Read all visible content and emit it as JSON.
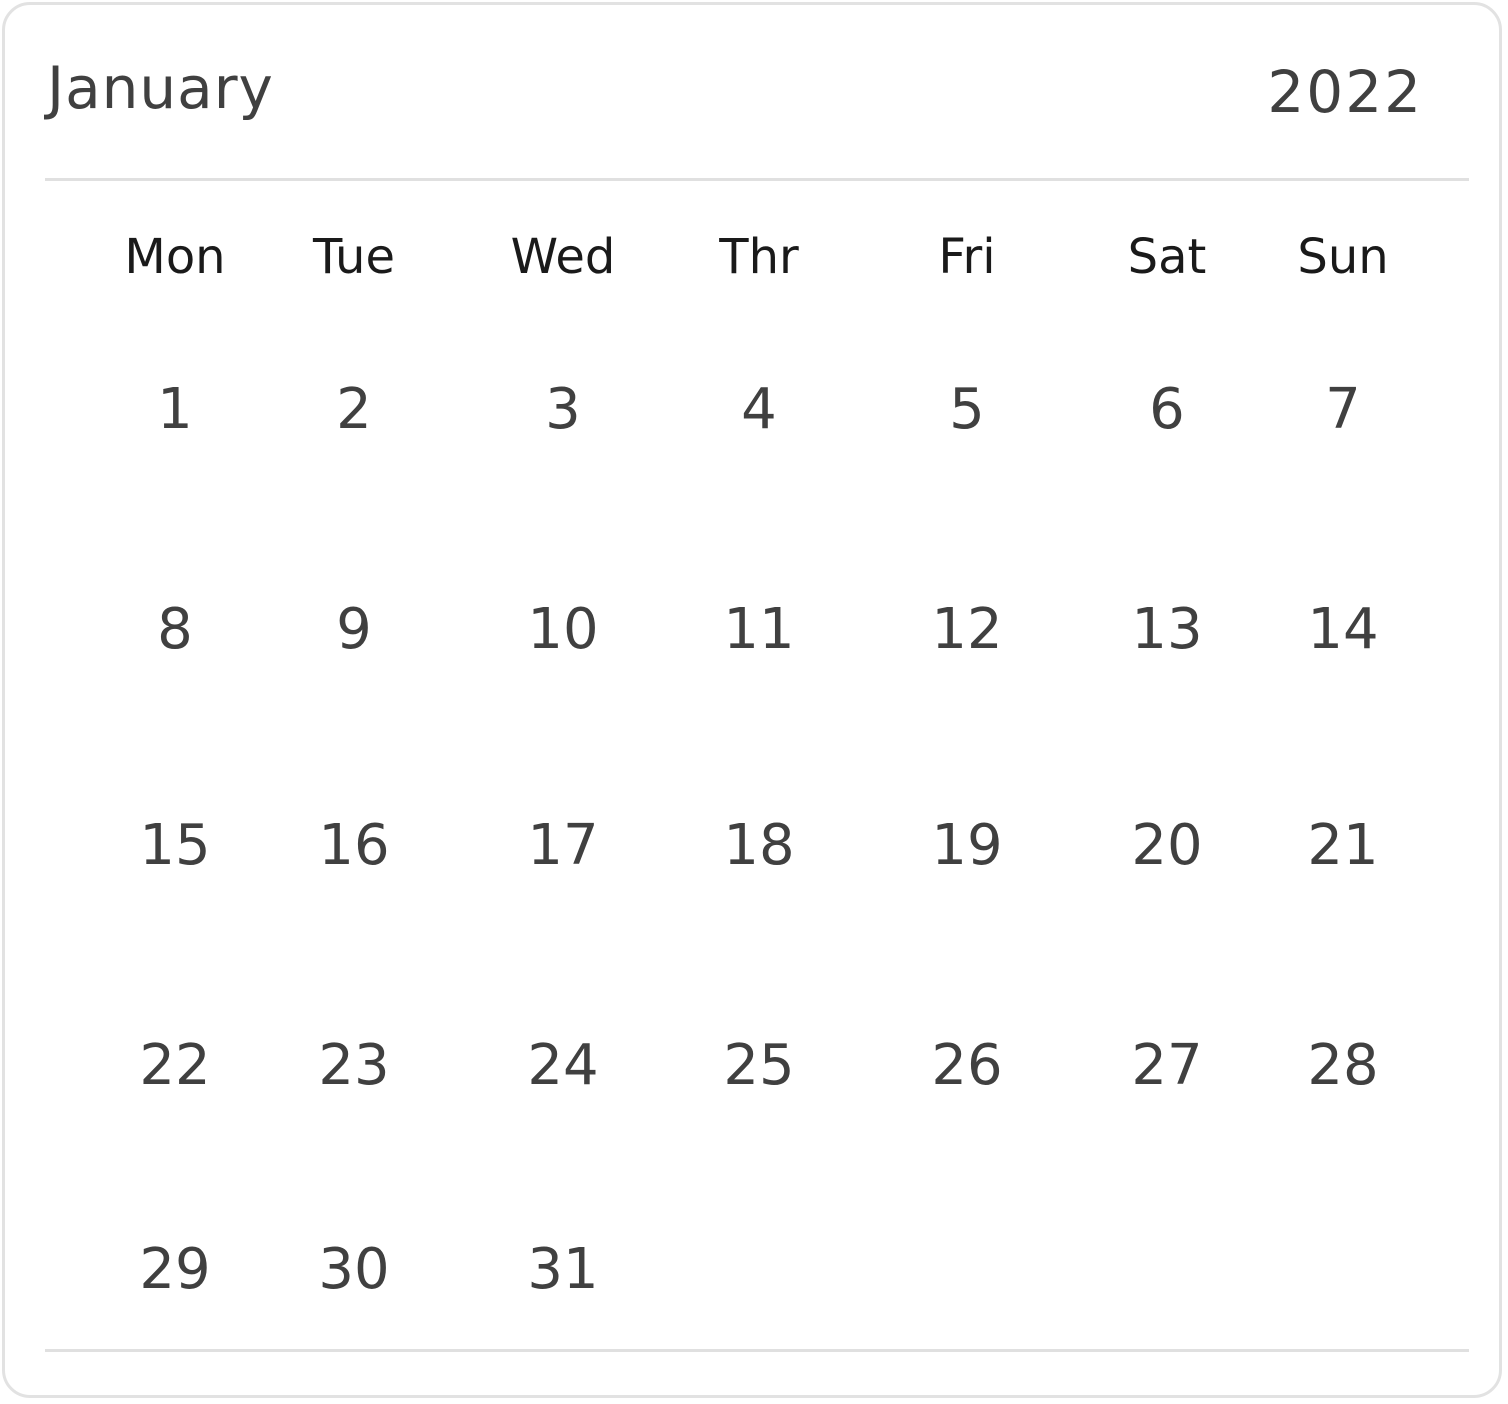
{
  "calendar": {
    "month": "January",
    "year": "2022",
    "weekdays": [
      "Mon",
      "Tue",
      "Wed",
      "Thr",
      "Fri",
      "Sat",
      "Sun"
    ],
    "weeks": [
      [
        "1",
        "2",
        "3",
        "4",
        "5",
        "6",
        "7"
      ],
      [
        "8",
        "9",
        "10",
        "11",
        "12",
        "13",
        "14"
      ],
      [
        "15",
        "16",
        "17",
        "18",
        "19",
        "20",
        "21"
      ],
      [
        "22",
        "23",
        "24",
        "25",
        "26",
        "27",
        "28"
      ],
      [
        "29",
        "30",
        "31"
      ]
    ],
    "colors": {
      "border": "#e2e2e2",
      "divider": "#e0e0e0",
      "text": "#404040",
      "weekday_text": "#1a1a1a",
      "background": "#ffffff"
    }
  }
}
